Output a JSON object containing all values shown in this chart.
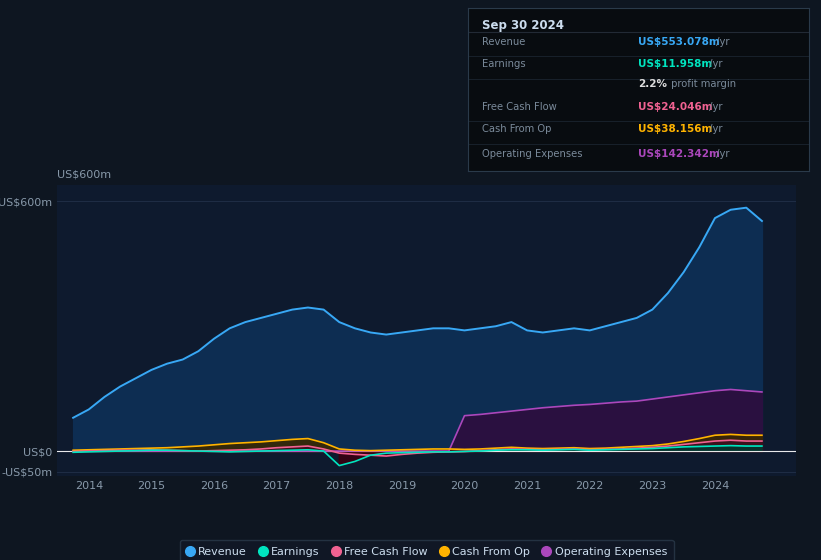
{
  "background_color": "#0e1621",
  "plot_bg_color": "#0e1a2e",
  "title_box": {
    "date": "Sep 30 2024",
    "rows": [
      {
        "label": "Revenue",
        "value": "US$553.078m",
        "value_color": "#38a8f5",
        "suffix": " /yr"
      },
      {
        "label": "Earnings",
        "value": "US$11.958m",
        "value_color": "#00e5c0",
        "suffix": " /yr"
      },
      {
        "label": "",
        "value": "2.2%",
        "value_color": "#ffffff",
        "suffix": " profit margin"
      },
      {
        "label": "Free Cash Flow",
        "value": "US$24.046m",
        "value_color": "#f06292",
        "suffix": " /yr"
      },
      {
        "label": "Cash From Op",
        "value": "US$38.156m",
        "value_color": "#ffb300",
        "suffix": " /yr"
      },
      {
        "label": "Operating Expenses",
        "value": "US$142.342m",
        "value_color": "#ab47bc",
        "suffix": " /yr"
      }
    ]
  },
  "years": [
    2013.75,
    2014.0,
    2014.25,
    2014.5,
    2014.75,
    2015.0,
    2015.25,
    2015.5,
    2015.75,
    2016.0,
    2016.25,
    2016.5,
    2016.75,
    2017.0,
    2017.25,
    2017.5,
    2017.75,
    2018.0,
    2018.25,
    2018.5,
    2018.75,
    2019.0,
    2019.25,
    2019.5,
    2019.75,
    2020.0,
    2020.25,
    2020.5,
    2020.75,
    2021.0,
    2021.25,
    2021.5,
    2021.75,
    2022.0,
    2022.25,
    2022.5,
    2022.75,
    2023.0,
    2023.25,
    2023.5,
    2023.75,
    2024.0,
    2024.25,
    2024.5,
    2024.75
  ],
  "revenue": [
    80,
    100,
    130,
    155,
    175,
    195,
    210,
    220,
    240,
    270,
    295,
    310,
    320,
    330,
    340,
    345,
    340,
    310,
    295,
    285,
    280,
    285,
    290,
    295,
    295,
    290,
    295,
    300,
    310,
    290,
    285,
    290,
    295,
    290,
    300,
    310,
    320,
    340,
    380,
    430,
    490,
    560,
    580,
    585,
    553
  ],
  "earnings": [
    -3,
    -2,
    -1,
    0,
    1,
    2,
    2,
    1,
    0,
    -1,
    -2,
    -1,
    0,
    1,
    2,
    3,
    0,
    -35,
    -25,
    -10,
    -5,
    -4,
    -3,
    -2,
    -2,
    -1,
    0,
    2,
    3,
    3,
    2,
    3,
    4,
    2,
    3,
    4,
    5,
    6,
    8,
    10,
    11,
    12,
    13,
    12,
    12
  ],
  "free_cash_flow": [
    -1,
    0,
    1,
    2,
    2,
    3,
    2,
    1,
    0,
    1,
    2,
    3,
    5,
    8,
    10,
    12,
    5,
    -5,
    -8,
    -10,
    -12,
    -8,
    -5,
    -3,
    -2,
    -1,
    1,
    3,
    5,
    4,
    3,
    4,
    5,
    3,
    4,
    5,
    7,
    9,
    12,
    16,
    20,
    24,
    26,
    24,
    24
  ],
  "cash_from_op": [
    2,
    3,
    4,
    5,
    6,
    7,
    8,
    10,
    12,
    15,
    18,
    20,
    22,
    25,
    28,
    30,
    20,
    5,
    2,
    1,
    2,
    3,
    4,
    5,
    5,
    4,
    5,
    7,
    9,
    7,
    6,
    7,
    8,
    6,
    7,
    9,
    11,
    13,
    17,
    23,
    30,
    38,
    40,
    38,
    38
  ],
  "operating_expenses": [
    0,
    0,
    0,
    0,
    0,
    0,
    0,
    0,
    0,
    0,
    0,
    0,
    0,
    0,
    0,
    0,
    0,
    0,
    0,
    0,
    0,
    0,
    0,
    0,
    0,
    85,
    88,
    92,
    96,
    100,
    104,
    107,
    110,
    112,
    115,
    118,
    120,
    125,
    130,
    135,
    140,
    145,
    148,
    145,
    142
  ],
  "colors": {
    "revenue": "#38a8f5",
    "earnings": "#00e5c0",
    "free_cash_flow": "#f06292",
    "cash_from_op": "#ffb300",
    "operating_expenses": "#ab47bc"
  },
  "fill_colors": {
    "revenue": "#0d2d52",
    "earnings_pos": "#003830",
    "earnings_neg": "#3a0010",
    "free_cash_flow_pos": "#3a1020",
    "free_cash_flow_neg": "#3a1020",
    "cash_from_op": "#3a2800",
    "operating_expenses": "#2a1040"
  },
  "ylim": [
    -60,
    640
  ],
  "yticks": [
    -50,
    0,
    600
  ],
  "ytick_labels": [
    "-US$50m",
    "US$0",
    "US$600m"
  ],
  "xticks": [
    2014,
    2015,
    2016,
    2017,
    2018,
    2019,
    2020,
    2021,
    2022,
    2023,
    2024
  ],
  "xlim": [
    2013.5,
    2025.3
  ],
  "legend": [
    {
      "label": "Revenue",
      "color": "#38a8f5"
    },
    {
      "label": "Earnings",
      "color": "#00e5c0"
    },
    {
      "label": "Free Cash Flow",
      "color": "#f06292"
    },
    {
      "label": "Cash From Op",
      "color": "#ffb300"
    },
    {
      "label": "Operating Expenses",
      "color": "#ab47bc"
    }
  ]
}
